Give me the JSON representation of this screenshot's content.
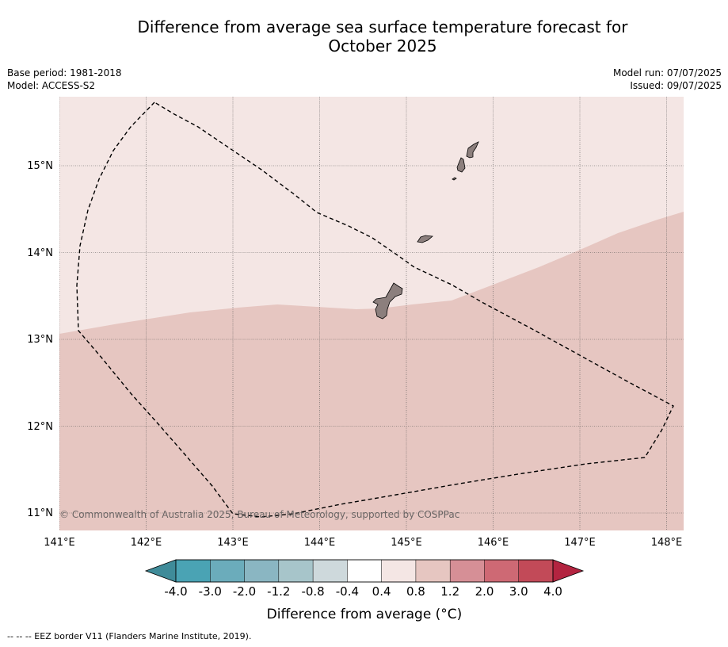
{
  "title": "Difference from average sea surface temperature forecast for\nOctober 2025",
  "info_left": {
    "base_period": "Base period: 1981-2018",
    "model": "Model: ACCESS-S2"
  },
  "info_right": {
    "model_run": "Model run: 07/07/2025",
    "issued": "Issued: 09/07/2025"
  },
  "map": {
    "longitude_labels": [
      "141°E",
      "142°E",
      "143°E",
      "144°E",
      "145°E",
      "146°E",
      "147°E",
      "148°E"
    ],
    "latitude_labels": [
      "15°N",
      "14°N",
      "13°N",
      "12°N",
      "11°N"
    ],
    "extent": {
      "lon_min": 141.0,
      "lon_max": 148.2,
      "lat_min": 10.8,
      "lat_max": 15.8
    },
    "copyright": "© Commonwealth of Australia 2025, Bureau of Meteorology, supported by COSPPac",
    "anomaly_regions": [
      {
        "range": "0.4 to 0.8",
        "color": "#f4e6e4"
      },
      {
        "range": "0.8 to 1.2",
        "color": "#e6c6c1"
      }
    ],
    "land_color": "#8c7f7d",
    "eez_color": "#000000"
  },
  "colorbar": {
    "labels": [
      "-4.0",
      "-3.0",
      "-2.0",
      "-1.2",
      "-0.8",
      "-0.4",
      "0.4",
      "0.8",
      "1.2",
      "2.0",
      "3.0",
      "4.0"
    ],
    "colors": [
      "#4aa3b4",
      "#6bacbb",
      "#8ab6c2",
      "#a7c5ca",
      "#ced9dc",
      "#ffffff",
      "#f4e6e4",
      "#e6c6c1",
      "#d68f96",
      "#ce6974",
      "#c24a58"
    ],
    "under_color": "#3f8b99",
    "over_color": "#b32440",
    "title": "Difference from average (°C)"
  },
  "footnote": "-- -- -- EEZ border V11 (Flanders Marine Institute, 2019)."
}
